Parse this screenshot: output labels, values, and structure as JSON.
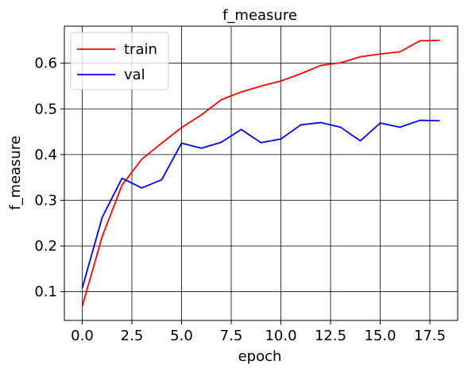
{
  "chart_data": {
    "type": "line",
    "title": "f_measure",
    "xlabel": "epoch",
    "ylabel": "f_measure",
    "xlim": [
      -0.9,
      18.9
    ],
    "ylim": [
      0.037,
      0.681
    ],
    "x_ticks": [
      0.0,
      2.5,
      5.0,
      7.5,
      10.0,
      12.5,
      15.0,
      17.5
    ],
    "x_tick_labels": [
      "0.0",
      "2.5",
      "5.0",
      "7.5",
      "10.0",
      "12.5",
      "15.0",
      "17.5"
    ],
    "y_ticks": [
      0.1,
      0.2,
      0.3,
      0.4,
      0.5,
      0.6
    ],
    "y_tick_labels": [
      "0.1",
      "0.2",
      "0.3",
      "0.4",
      "0.5",
      "0.6"
    ],
    "grid": true,
    "legend_position": "top-left",
    "x": [
      0,
      1,
      2,
      3,
      4,
      5,
      6,
      7,
      8,
      9,
      10,
      11,
      12,
      13,
      14,
      15,
      16,
      17,
      18
    ],
    "series": [
      {
        "name": "train",
        "color": "#ff0000",
        "values": [
          0.068,
          0.22,
          0.333,
          0.39,
          0.425,
          0.459,
          0.487,
          0.52,
          0.537,
          0.55,
          0.561,
          0.577,
          0.595,
          0.601,
          0.614,
          0.62,
          0.625,
          0.649,
          0.65
        ]
      },
      {
        "name": "val",
        "color": "#0000ff",
        "values": [
          0.108,
          0.262,
          0.348,
          0.327,
          0.345,
          0.425,
          0.414,
          0.427,
          0.455,
          0.426,
          0.434,
          0.465,
          0.47,
          0.46,
          0.43,
          0.469,
          0.46,
          0.475,
          0.474
        ]
      }
    ]
  }
}
